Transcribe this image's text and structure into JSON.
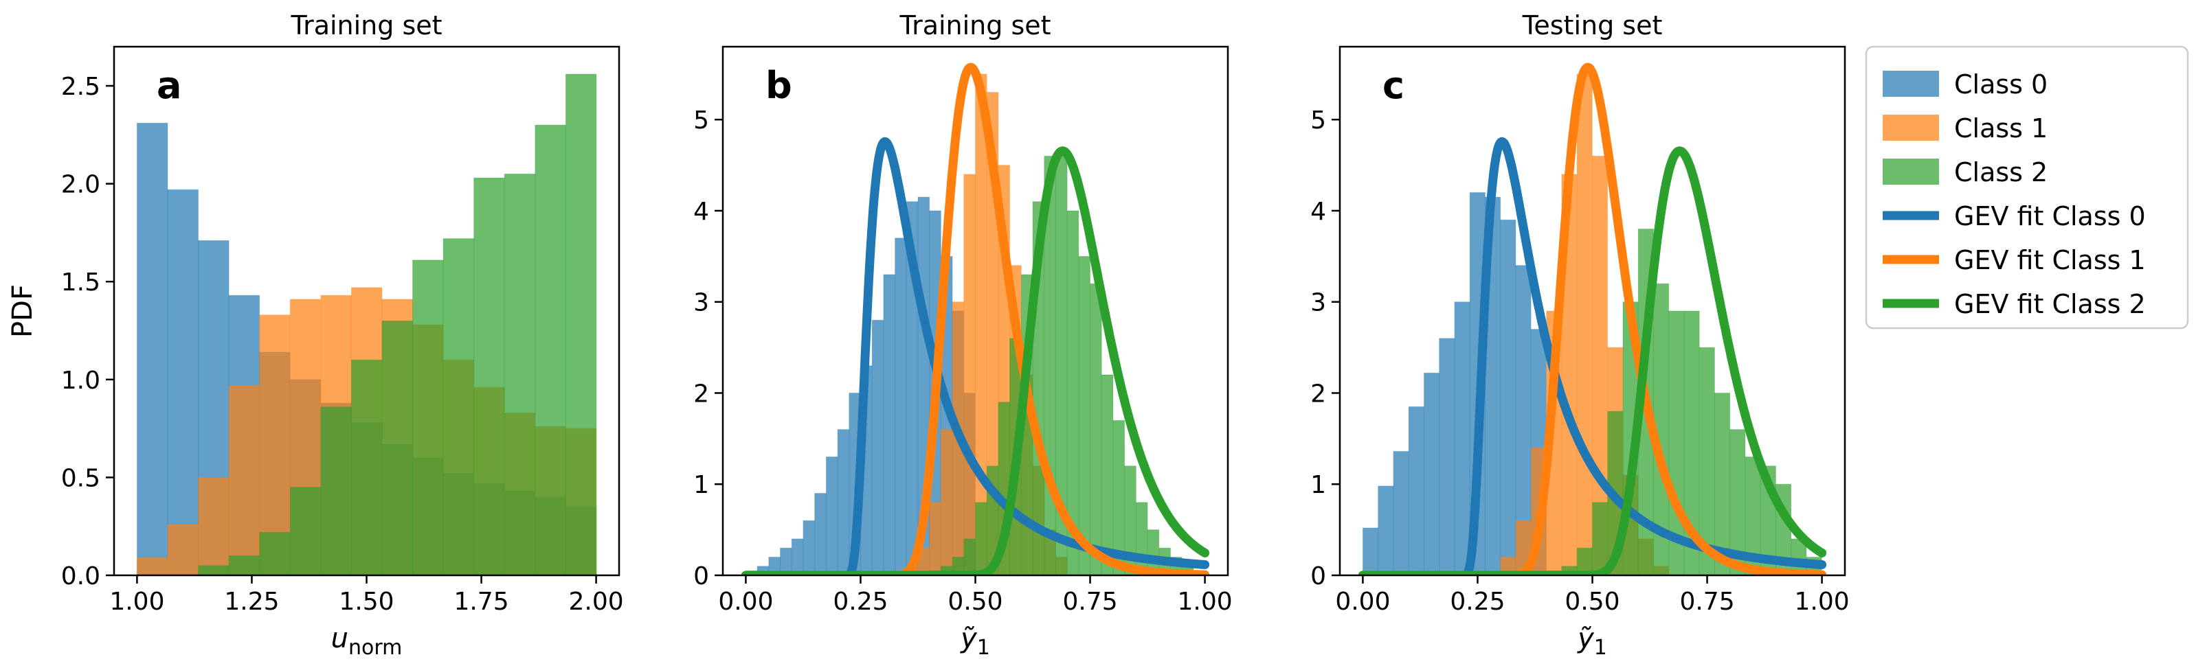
{
  "colors": {
    "class0": "#1f77b4",
    "class1": "#ff7f0e",
    "class2": "#2ca02c"
  },
  "legend": {
    "placement": "outside-right",
    "entries": [
      {
        "label": "Class 0",
        "kind": "bar",
        "class": 0
      },
      {
        "label": "Class 1",
        "kind": "bar",
        "class": 1
      },
      {
        "label": "Class 2",
        "kind": "bar",
        "class": 2
      },
      {
        "label": "GEV fit Class 0",
        "kind": "line",
        "class": 0
      },
      {
        "label": "GEV fit Class 1",
        "kind": "line",
        "class": 1
      },
      {
        "label": "GEV fit Class 2",
        "kind": "line",
        "class": 2
      }
    ]
  },
  "chart_data": [
    {
      "type": "bar",
      "title": "Training set",
      "panel_label": "a",
      "xlabel": "u",
      "xlabel_sub": "norm",
      "ylabel": "PDF",
      "xlim": [
        0.95,
        2.05
      ],
      "ylim": [
        0,
        2.7
      ],
      "xticks": [
        "1.00",
        "1.25",
        "1.50",
        "1.75",
        "2.00"
      ],
      "xtick_values": [
        1.0,
        1.25,
        1.5,
        1.75,
        2.0
      ],
      "yticks": [
        "0.0",
        "0.5",
        "1.0",
        "1.5",
        "2.0",
        "2.5"
      ],
      "ytick_values": [
        0,
        0.5,
        1.0,
        1.5,
        2.0,
        2.5
      ],
      "grid": false,
      "histograms": [
        {
          "class": 0,
          "bin_start": 1.0,
          "bin_width": 0.0667,
          "values": [
            2.31,
            1.97,
            1.71,
            1.43,
            1.14,
            1.0,
            0.88,
            0.78,
            0.67,
            0.6,
            0.52,
            0.47,
            0.43,
            0.4,
            0.35
          ]
        },
        {
          "class": 1,
          "bin_start": 1.0,
          "bin_width": 0.0667,
          "values": [
            0.09,
            0.26,
            0.5,
            0.97,
            1.33,
            1.41,
            1.43,
            1.47,
            1.41,
            1.28,
            1.1,
            0.96,
            0.83,
            0.76,
            0.75
          ]
        },
        {
          "class": 2,
          "bin_start": 1.0,
          "bin_width": 0.0667,
          "values": [
            0.0,
            0.0,
            0.05,
            0.1,
            0.22,
            0.45,
            0.86,
            1.1,
            1.3,
            1.61,
            1.72,
            2.03,
            2.05,
            2.3,
            2.56
          ]
        }
      ],
      "fits": []
    },
    {
      "type": "bar",
      "title": "Training set",
      "panel_label": "b",
      "xlabel": "ỹ",
      "xlabel_sub": "1",
      "ylabel": "",
      "xlim": [
        -0.05,
        1.05
      ],
      "ylim": [
        0,
        5.8
      ],
      "xticks": [
        "0.00",
        "0.25",
        "0.50",
        "0.75",
        "1.00"
      ],
      "xtick_values": [
        0,
        0.25,
        0.5,
        0.75,
        1.0
      ],
      "yticks": [
        "0",
        "1",
        "2",
        "3",
        "4",
        "5"
      ],
      "ytick_values": [
        0,
        1,
        2,
        3,
        4,
        5
      ],
      "grid": false,
      "histograms": [
        {
          "class": 0,
          "bin_start": 0.0,
          "bin_width": 0.025,
          "values": [
            0.05,
            0.1,
            0.2,
            0.3,
            0.4,
            0.6,
            0.9,
            1.3,
            1.6,
            2.0,
            2.3,
            2.8,
            3.3,
            3.7,
            4.1,
            4.15,
            4.0,
            3.5,
            2.9,
            2.0
          ]
        },
        {
          "class": 1,
          "bin_start": 0.35,
          "bin_width": 0.025,
          "values": [
            0.1,
            0.3,
            0.8,
            1.6,
            3.0,
            4.4,
            5.5,
            5.3,
            4.5,
            3.4,
            2.2,
            1.2,
            0.5,
            0.2
          ]
        },
        {
          "class": 2,
          "bin_start": 0.4,
          "bin_width": 0.025,
          "values": [
            0.05,
            0.1,
            0.2,
            0.4,
            0.8,
            1.2,
            1.9,
            2.6,
            3.3,
            4.1,
            4.6,
            4.6,
            4.0,
            3.5,
            3.2,
            2.2,
            1.7,
            1.2,
            0.8,
            0.5,
            0.3,
            0.2,
            0.1,
            0.05
          ]
        }
      ],
      "fits": [
        {
          "class": 0,
          "mu": 0.34,
          "sigma": 0.09,
          "xi": 0.6,
          "x_from": 0.0,
          "x_to": 1.0
        },
        {
          "class": 1,
          "mu": 0.49,
          "sigma": 0.066,
          "xi": 0.0,
          "x_from": 0.0,
          "x_to": 1.0
        },
        {
          "class": 2,
          "mu": 0.69,
          "sigma": 0.079,
          "xi": 0.0,
          "x_from": 0.0,
          "x_to": 1.0
        }
      ]
    },
    {
      "type": "bar",
      "title": "Testing set",
      "panel_label": "c",
      "xlabel": "ỹ",
      "xlabel_sub": "1",
      "ylabel": "",
      "xlim": [
        -0.05,
        1.05
      ],
      "ylim": [
        0,
        5.8
      ],
      "xticks": [
        "0.00",
        "0.25",
        "0.50",
        "0.75",
        "1.00"
      ],
      "xtick_values": [
        0,
        0.25,
        0.5,
        0.75,
        1.0
      ],
      "yticks": [
        "0",
        "1",
        "2",
        "3",
        "4",
        "5"
      ],
      "ytick_values": [
        0,
        1,
        2,
        3,
        4,
        5
      ],
      "grid": false,
      "histograms": [
        {
          "class": 0,
          "bin_start": 0.0,
          "bin_width": 0.0333,
          "values": [
            0.52,
            0.98,
            1.36,
            1.85,
            2.22,
            2.6,
            3.0,
            4.2,
            4.15,
            3.9,
            3.4,
            2.7
          ]
        },
        {
          "class": 1,
          "bin_start": 0.3,
          "bin_width": 0.0333,
          "values": [
            0.2,
            0.6,
            1.4,
            2.9,
            4.4,
            5.5,
            4.6,
            2.5,
            1.1,
            0.4,
            0.1
          ]
        },
        {
          "class": 2,
          "bin_start": 0.4,
          "bin_width": 0.0333,
          "values": [
            0.05,
            0.1,
            0.3,
            0.8,
            1.8,
            3.0,
            3.8,
            3.2,
            2.9,
            2.9,
            2.5,
            2.0,
            1.6,
            1.3,
            1.2,
            1.0,
            0.4,
            0.2
          ]
        }
      ],
      "fits": [
        {
          "class": 0,
          "mu": 0.34,
          "sigma": 0.09,
          "xi": 0.6,
          "x_from": 0.0,
          "x_to": 1.0
        },
        {
          "class": 1,
          "mu": 0.49,
          "sigma": 0.066,
          "xi": 0.0,
          "x_from": 0.0,
          "x_to": 1.0
        },
        {
          "class": 2,
          "mu": 0.69,
          "sigma": 0.079,
          "xi": 0.0,
          "x_from": 0.0,
          "x_to": 1.0
        }
      ]
    }
  ]
}
